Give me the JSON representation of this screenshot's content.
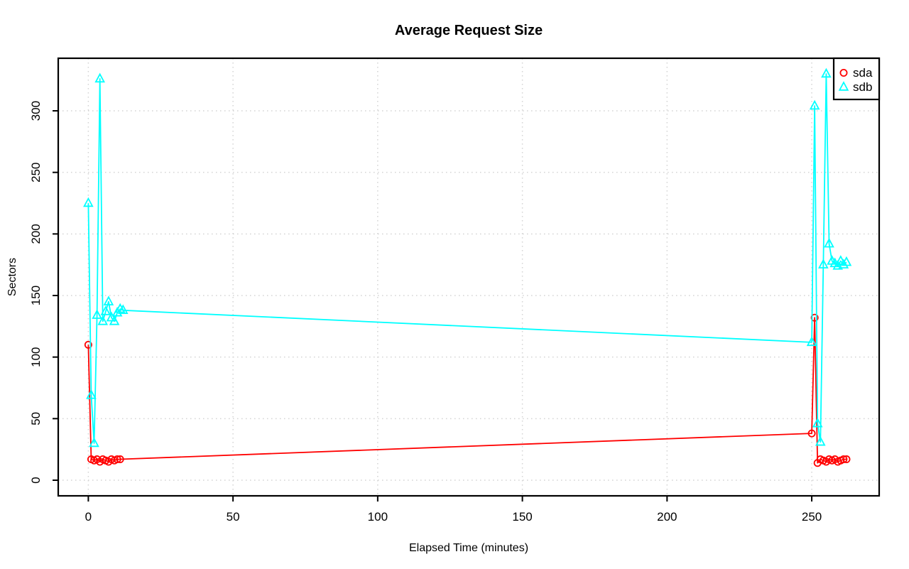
{
  "title": "Average Request Size",
  "background": "#ffffff",
  "axis_color": "#000000",
  "chart_data": {
    "type": "line",
    "title": "Average Request Size",
    "xlabel": "Elapsed Time (minutes)",
    "ylabel": "Sectors",
    "xlim": [
      -10.4,
      273.3
    ],
    "ylim": [
      -12.7,
      342.7
    ],
    "x_ticks": [
      0,
      50,
      100,
      150,
      200,
      250
    ],
    "y_ticks": [
      0,
      50,
      100,
      150,
      200,
      250,
      300
    ],
    "grid": {
      "style": "dotted",
      "color": "#d3d3d3"
    },
    "legend_position": "topright",
    "series": [
      {
        "name": "sda",
        "color": "#ff0000",
        "marker": "circle",
        "x": [
          0,
          1,
          2,
          3,
          4,
          5,
          6,
          7,
          8,
          9,
          10,
          11,
          250,
          251,
          252,
          253,
          254,
          255,
          256,
          257,
          258,
          259,
          260,
          261,
          262
        ],
        "y": [
          110,
          17,
          16,
          17,
          15,
          17,
          16,
          15,
          17,
          16,
          17,
          17,
          38,
          132,
          14,
          17,
          16,
          15,
          17,
          16,
          17,
          15,
          16,
          17,
          17
        ]
      },
      {
        "name": "sdb",
        "color": "#00ffff",
        "marker": "triangle",
        "x": [
          0,
          1,
          2,
          3,
          4,
          5,
          6,
          7,
          8,
          9,
          10,
          11,
          12,
          250,
          251,
          252,
          253,
          254,
          255,
          256,
          257,
          258,
          259,
          260,
          261,
          262
        ],
        "y": [
          225,
          69,
          30,
          134,
          326,
          129,
          137,
          145,
          132,
          129,
          136,
          139,
          138,
          112,
          304,
          46,
          31,
          175,
          330,
          192,
          178,
          176,
          174,
          178,
          175,
          177
        ]
      }
    ]
  },
  "legend": {
    "items": [
      {
        "label": "sda",
        "marker": "circle",
        "color": "#ff0000"
      },
      {
        "label": "sdb",
        "marker": "triangle",
        "color": "#00ffff"
      }
    ]
  }
}
